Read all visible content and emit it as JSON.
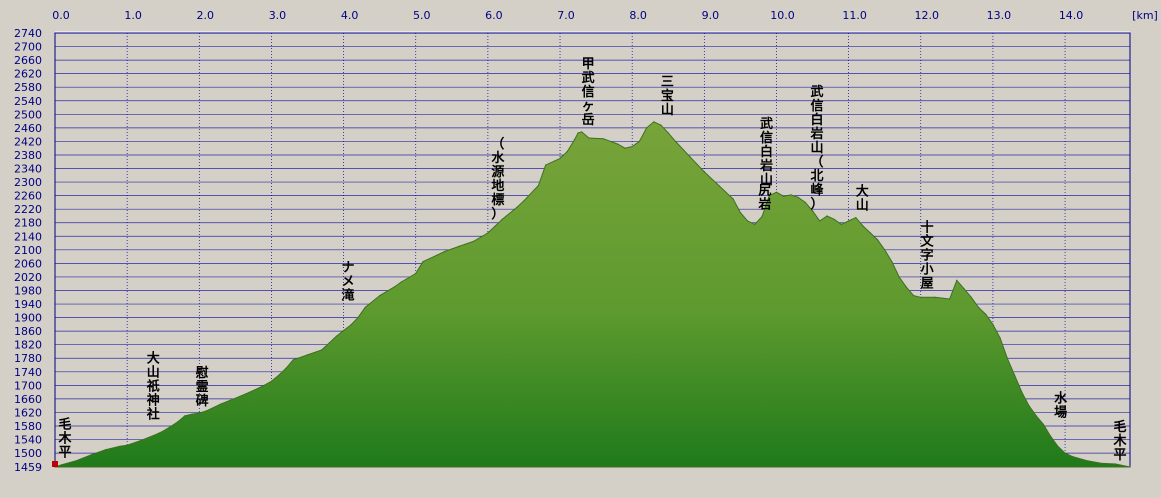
{
  "chart_data": {
    "type": "area",
    "x_unit": "[km]",
    "xlim": [
      0,
      14.9
    ],
    "ylim": [
      1459,
      2740
    ],
    "x_ticks": [
      "0.0",
      "1.0",
      "2.0",
      "3.0",
      "4.0",
      "5.0",
      "6.0",
      "7.0",
      "8.0",
      "9.0",
      "10.0",
      "11.0",
      "12.0",
      "13.0",
      "14.0"
    ],
    "y_ticks": [
      "2740",
      "2700",
      "2660",
      "2620",
      "2580",
      "2540",
      "2500",
      "2460",
      "2420",
      "2380",
      "2340",
      "2300",
      "2260",
      "2220",
      "2180",
      "2140",
      "2100",
      "2060",
      "2020",
      "1980",
      "1940",
      "1900",
      "1860",
      "1820",
      "1780",
      "1740",
      "1700",
      "1660",
      "1620",
      "1580",
      "1540",
      "1500",
      "1459"
    ],
    "colors": {
      "fill": "#78a43a",
      "fill_bottom": "#1f7a1a",
      "line": "#3f6f22",
      "plot_bg": "#d4d0c8",
      "grid": "#000099"
    },
    "series": [
      {
        "x": [
          0.0,
          0.1,
          0.3,
          0.5,
          0.7,
          0.9,
          1.0,
          1.2,
          1.4,
          1.5,
          1.6,
          1.7,
          1.8,
          1.9,
          2.0,
          2.1,
          2.3,
          2.5,
          2.7,
          2.9,
          3.0,
          3.1,
          3.2,
          3.3,
          3.5,
          3.7,
          3.8,
          3.9,
          4.0,
          4.1,
          4.2,
          4.3,
          4.5,
          4.7,
          4.8,
          5.0,
          5.1,
          5.3,
          5.4,
          5.6,
          5.8,
          6.0,
          6.1,
          6.2,
          6.4,
          6.5,
          6.7,
          6.8,
          7.0,
          7.1,
          7.2,
          7.25,
          7.3,
          7.4,
          7.6,
          7.8,
          7.9,
          8.0,
          8.1,
          8.2,
          8.3,
          8.4,
          8.5,
          8.6,
          8.8,
          9.0,
          9.2,
          9.4,
          9.5,
          9.6,
          9.7,
          9.8,
          9.9,
          10.0,
          10.1,
          10.2,
          10.3,
          10.4,
          10.5,
          10.6,
          10.7,
          10.8,
          10.9,
          11.0,
          11.1,
          11.2,
          11.3,
          11.4,
          11.5,
          11.6,
          11.7,
          11.8,
          11.9,
          12.0,
          12.2,
          12.4,
          12.5,
          12.6,
          12.7,
          12.8,
          12.9,
          13.0,
          13.1,
          13.2,
          13.3,
          13.4,
          13.5,
          13.6,
          13.7,
          13.8,
          13.9,
          14.0,
          14.1,
          14.3,
          14.5,
          14.7,
          14.9
        ],
        "y": [
          1459,
          1466,
          1478,
          1495,
          1510,
          1520,
          1523,
          1538,
          1555,
          1565,
          1578,
          1592,
          1610,
          1615,
          1618,
          1625,
          1645,
          1662,
          1680,
          1700,
          1712,
          1730,
          1750,
          1775,
          1790,
          1805,
          1825,
          1845,
          1862,
          1878,
          1900,
          1930,
          1965,
          1990,
          2005,
          2030,
          2065,
          2085,
          2095,
          2110,
          2125,
          2150,
          2170,
          2190,
          2225,
          2245,
          2290,
          2350,
          2370,
          2390,
          2425,
          2445,
          2448,
          2430,
          2428,
          2412,
          2400,
          2405,
          2420,
          2460,
          2478,
          2468,
          2445,
          2420,
          2375,
          2330,
          2290,
          2250,
          2210,
          2185,
          2175,
          2198,
          2260,
          2270,
          2258,
          2262,
          2255,
          2240,
          2215,
          2185,
          2200,
          2190,
          2175,
          2185,
          2195,
          2170,
          2150,
          2130,
          2100,
          2065,
          2020,
          1990,
          1965,
          1960,
          1960,
          1955,
          2010,
          1985,
          1960,
          1930,
          1910,
          1880,
          1840,
          1780,
          1730,
          1680,
          1640,
          1610,
          1585,
          1550,
          1520,
          1500,
          1490,
          1478,
          1470,
          1468,
          1459
        ]
      }
    ],
    "annotations": [
      {
        "text": "毛木平",
        "x": 0.0,
        "side": "right"
      },
      {
        "text": "大山祇神社",
        "x": 1.5,
        "side": "left"
      },
      {
        "text": "慰霊碑",
        "x": 1.9,
        "side": "right"
      },
      {
        "text": "ナメ滝",
        "x": 4.2,
        "side": "left"
      },
      {
        "text": "（水源地標）",
        "x": 6.0,
        "side": "right"
      },
      {
        "text": "甲武信ヶ岳",
        "x": 7.25,
        "side": "right"
      },
      {
        "text": "三宝山",
        "x": 8.35,
        "side": "right"
      },
      {
        "text": "尻岩",
        "x": 9.7,
        "side": "right"
      },
      {
        "text": "武信白岩山",
        "x": 10.0,
        "side": "left"
      },
      {
        "text": "武信白岩山（北峰）",
        "x": 10.7,
        "side": "left"
      },
      {
        "text": "大山",
        "x": 11.05,
        "side": "right"
      },
      {
        "text": "十文字小屋",
        "x": 11.95,
        "side": "right"
      },
      {
        "text": "水場",
        "x": 13.8,
        "side": "right"
      },
      {
        "text": "毛木平",
        "x": 14.9,
        "side": "left"
      }
    ]
  }
}
